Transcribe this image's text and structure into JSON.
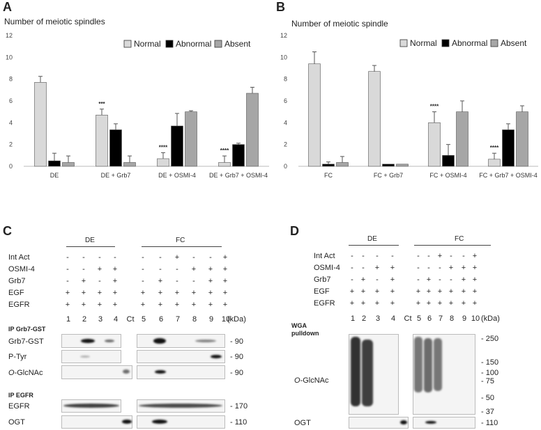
{
  "panels": {
    "A": {
      "letter": "A",
      "title": "Number of meiotic spindles"
    },
    "B": {
      "letter": "B",
      "title": "Number of meiotic spindle"
    },
    "C": {
      "letter": "C"
    },
    "D": {
      "letter": "D"
    }
  },
  "chart_data": [
    {
      "type": "bar",
      "title": "Number of meiotic spindles",
      "categories": [
        "DE",
        "DE + Grb7",
        "DE + OSMI-4",
        "DE + Grb7 + OSMI-4"
      ],
      "ylim": [
        0,
        12
      ],
      "yticks": [
        "0",
        "2",
        "4",
        "6",
        "8",
        "10",
        "12"
      ],
      "legend_position": "top-right",
      "series": [
        {
          "name": "Normal",
          "color": "#d9d9d9",
          "values": [
            7.7,
            4.7,
            0.7,
            0.35
          ],
          "errors": [
            0.55,
            0.55,
            0.55,
            0.6
          ]
        },
        {
          "name": "Abnormal",
          "color": "#000000",
          "values": [
            0.5,
            3.35,
            3.7,
            2.0
          ],
          "errors": [
            0.7,
            0.55,
            1.15,
            0.12
          ]
        },
        {
          "name": "Absent",
          "color": "#a6a6a6",
          "values": [
            0.35,
            0.35,
            5.0,
            6.7
          ],
          "errors": [
            0.6,
            0.6,
            0.1,
            0.55
          ]
        }
      ],
      "annotations": [
        {
          "category": "DE + Grb7",
          "series": "Normal",
          "text": "***"
        },
        {
          "category": "DE + OSMI-4",
          "series": "Normal",
          "text": "****"
        },
        {
          "category": "DE + Grb7 + OSMI-4",
          "series": "Normal",
          "text": "****"
        }
      ]
    },
    {
      "type": "bar",
      "title": "Number of meiotic spindle",
      "categories": [
        "FC",
        "FC + Grb7",
        "FC + OSMI-4",
        "FC + Grb7 + OSMI-4"
      ],
      "ylim": [
        0,
        12
      ],
      "yticks": [
        "0",
        "2",
        "4",
        "6",
        "8",
        "10",
        "12"
      ],
      "legend_position": "top-right",
      "series": [
        {
          "name": "Normal",
          "color": "#d9d9d9",
          "values": [
            9.4,
            8.7,
            4.0,
            0.65
          ],
          "errors": [
            1.1,
            0.55,
            1.0,
            0.55
          ]
        },
        {
          "name": "Abnormal",
          "color": "#000000",
          "values": [
            0.2,
            0.2,
            1.0,
            3.35
          ],
          "errors": [
            0.2,
            0.0,
            1.0,
            0.55
          ]
        },
        {
          "name": "Absent",
          "color": "#a6a6a6",
          "values": [
            0.35,
            0.2,
            5.0,
            5.0
          ],
          "errors": [
            0.55,
            0.0,
            1.0,
            0.55
          ]
        }
      ],
      "annotations": [
        {
          "category": "FC + OSMI-4",
          "series": "Normal",
          "text": "****"
        },
        {
          "category": "FC + Grb7 + OSMI-4",
          "series": "Normal",
          "text": "****"
        }
      ]
    }
  ],
  "blotC": {
    "group_de": "DE",
    "group_fc": "FC",
    "rows": [
      {
        "label": "Int Act",
        "vals": [
          "-",
          "-",
          "-",
          "-",
          "-",
          "-",
          "+",
          "-",
          "-",
          "+"
        ]
      },
      {
        "label": "OSMI-4",
        "vals": [
          "-",
          "-",
          "+",
          "+",
          "-",
          "-",
          "-",
          "+",
          "+",
          "+"
        ]
      },
      {
        "label": "Grb7",
        "vals": [
          "-",
          "+",
          "-",
          "+",
          "-",
          "+",
          "-",
          "-",
          "+",
          "+"
        ]
      },
      {
        "label": "EGF",
        "vals": [
          "+",
          "+",
          "+",
          "+",
          "+",
          "+",
          "+",
          "+",
          "+",
          "+"
        ]
      },
      {
        "label": "EGFR",
        "vals": [
          "+",
          "+",
          "+",
          "+",
          "+",
          "+",
          "+",
          "+",
          "+",
          "+"
        ]
      }
    ],
    "lanes": [
      "1",
      "2",
      "3",
      "4",
      "Ct",
      "5",
      "6",
      "7",
      "8",
      "9",
      "10"
    ],
    "kda": "(kDa)",
    "ip1": "IP Grb7-GST",
    "ip2": "IP EGFR",
    "blots": [
      {
        "label": "Grb7-GST",
        "mw": "- 90"
      },
      {
        "label": "P-Tyr",
        "mw": "- 90"
      },
      {
        "label_italic": "O",
        "label_rest": "-GlcNAc",
        "mw": "- 90"
      },
      {
        "label": "EGFR",
        "mw": "- 170"
      },
      {
        "label": "OGT",
        "mw": "- 110"
      }
    ]
  },
  "blotD": {
    "group_de": "DE",
    "group_fc": "FC",
    "rows": [
      {
        "label": "Int Act",
        "vals": [
          "-",
          "-",
          "-",
          "-",
          "-",
          "-",
          "+",
          "-",
          "-",
          "+"
        ]
      },
      {
        "label": "OSMI-4",
        "vals": [
          "-",
          "-",
          "+",
          "+",
          "-",
          "-",
          "-",
          "+",
          "+",
          "+"
        ]
      },
      {
        "label": "Grb7",
        "vals": [
          "-",
          "+",
          "-",
          "+",
          "-",
          "+",
          "-",
          "-",
          "+",
          "+"
        ]
      },
      {
        "label": "EGF",
        "vals": [
          "+",
          "+",
          "+",
          "+",
          "+",
          "+",
          "+",
          "+",
          "+",
          "+"
        ]
      },
      {
        "label": "EGFR",
        "vals": [
          "+",
          "+",
          "+",
          "+",
          "+",
          "+",
          "+",
          "+",
          "+",
          "+"
        ]
      }
    ],
    "lanes": [
      "1",
      "2",
      "3",
      "4",
      "Ct",
      "5",
      "6",
      "7",
      "8",
      "9",
      "10"
    ],
    "kda": "(kDa)",
    "pulldown": "WGA pulldown",
    "glc_italic": "O",
    "glc_rest": "-GlcNAc",
    "ogt": "OGT",
    "markers": [
      "- 250",
      "- 150",
      "- 100",
      "- 75",
      "- 50",
      "- 37"
    ],
    "ogt_mw": "- 110"
  }
}
